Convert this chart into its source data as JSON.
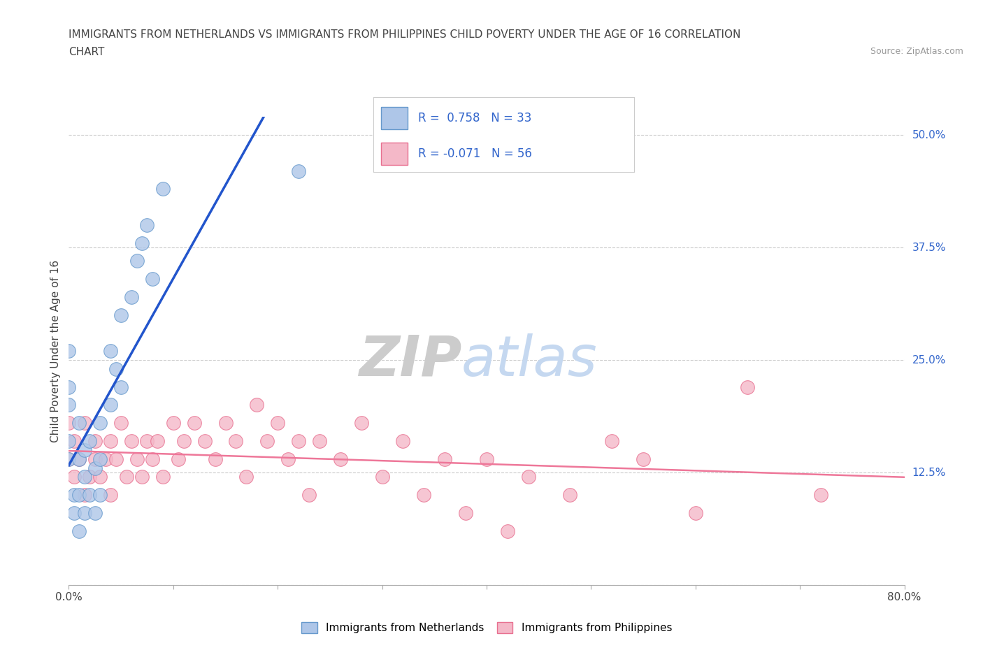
{
  "title_line1": "IMMIGRANTS FROM NETHERLANDS VS IMMIGRANTS FROM PHILIPPINES CHILD POVERTY UNDER THE AGE OF 16 CORRELATION",
  "title_line2": "CHART",
  "source_text": "Source: ZipAtlas.com",
  "ylabel": "Child Poverty Under the Age of 16",
  "xlim": [
    0.0,
    0.8
  ],
  "ylim": [
    0.0,
    0.52
  ],
  "xticks": [
    0.0,
    0.1,
    0.2,
    0.3,
    0.4,
    0.5,
    0.6,
    0.7,
    0.8
  ],
  "xticklabels": [
    "0.0%",
    "",
    "",
    "",
    "",
    "",
    "",
    "",
    "80.0%"
  ],
  "yticks": [
    0.0,
    0.125,
    0.25,
    0.375,
    0.5
  ],
  "yticklabels": [
    "",
    "12.5%",
    "25.0%",
    "37.5%",
    "50.0%"
  ],
  "netherlands_color": "#aec6e8",
  "netherlands_edge": "#6699cc",
  "philippines_color": "#f4b8c8",
  "philippines_edge": "#e87090",
  "netherlands_R": 0.758,
  "netherlands_N": 33,
  "philippines_R": -0.071,
  "philippines_N": 56,
  "netherlands_line_color": "#2255cc",
  "philippines_line_color": "#ee7799",
  "watermark_zip": "ZIP",
  "watermark_atlas": "atlas",
  "legend_label_1": "Immigrants from Netherlands",
  "legend_label_2": "Immigrants from Philippines",
  "netherlands_x": [
    0.0,
    0.0,
    0.0,
    0.0,
    0.0,
    0.005,
    0.005,
    0.01,
    0.01,
    0.01,
    0.01,
    0.015,
    0.015,
    0.015,
    0.02,
    0.02,
    0.025,
    0.025,
    0.03,
    0.03,
    0.03,
    0.04,
    0.04,
    0.045,
    0.05,
    0.05,
    0.06,
    0.065,
    0.07,
    0.075,
    0.08,
    0.09,
    0.22
  ],
  "netherlands_y": [
    0.14,
    0.16,
    0.2,
    0.22,
    0.26,
    0.08,
    0.1,
    0.06,
    0.1,
    0.14,
    0.18,
    0.08,
    0.12,
    0.15,
    0.1,
    0.16,
    0.08,
    0.13,
    0.1,
    0.14,
    0.18,
    0.2,
    0.26,
    0.24,
    0.22,
    0.3,
    0.32,
    0.36,
    0.38,
    0.4,
    0.34,
    0.44,
    0.46
  ],
  "philippines_x": [
    0.0,
    0.0,
    0.005,
    0.005,
    0.01,
    0.015,
    0.015,
    0.02,
    0.025,
    0.025,
    0.03,
    0.035,
    0.04,
    0.04,
    0.045,
    0.05,
    0.055,
    0.06,
    0.065,
    0.07,
    0.075,
    0.08,
    0.085,
    0.09,
    0.1,
    0.105,
    0.11,
    0.12,
    0.13,
    0.14,
    0.15,
    0.16,
    0.17,
    0.18,
    0.19,
    0.2,
    0.21,
    0.22,
    0.23,
    0.24,
    0.26,
    0.28,
    0.3,
    0.32,
    0.34,
    0.36,
    0.38,
    0.4,
    0.42,
    0.44,
    0.48,
    0.52,
    0.55,
    0.6,
    0.65,
    0.72
  ],
  "philippines_y": [
    0.14,
    0.18,
    0.12,
    0.16,
    0.14,
    0.1,
    0.18,
    0.12,
    0.14,
    0.16,
    0.12,
    0.14,
    0.1,
    0.16,
    0.14,
    0.18,
    0.12,
    0.16,
    0.14,
    0.12,
    0.16,
    0.14,
    0.16,
    0.12,
    0.18,
    0.14,
    0.16,
    0.18,
    0.16,
    0.14,
    0.18,
    0.16,
    0.12,
    0.2,
    0.16,
    0.18,
    0.14,
    0.16,
    0.1,
    0.16,
    0.14,
    0.18,
    0.12,
    0.16,
    0.1,
    0.14,
    0.08,
    0.14,
    0.06,
    0.12,
    0.1,
    0.16,
    0.14,
    0.08,
    0.22,
    0.1
  ]
}
